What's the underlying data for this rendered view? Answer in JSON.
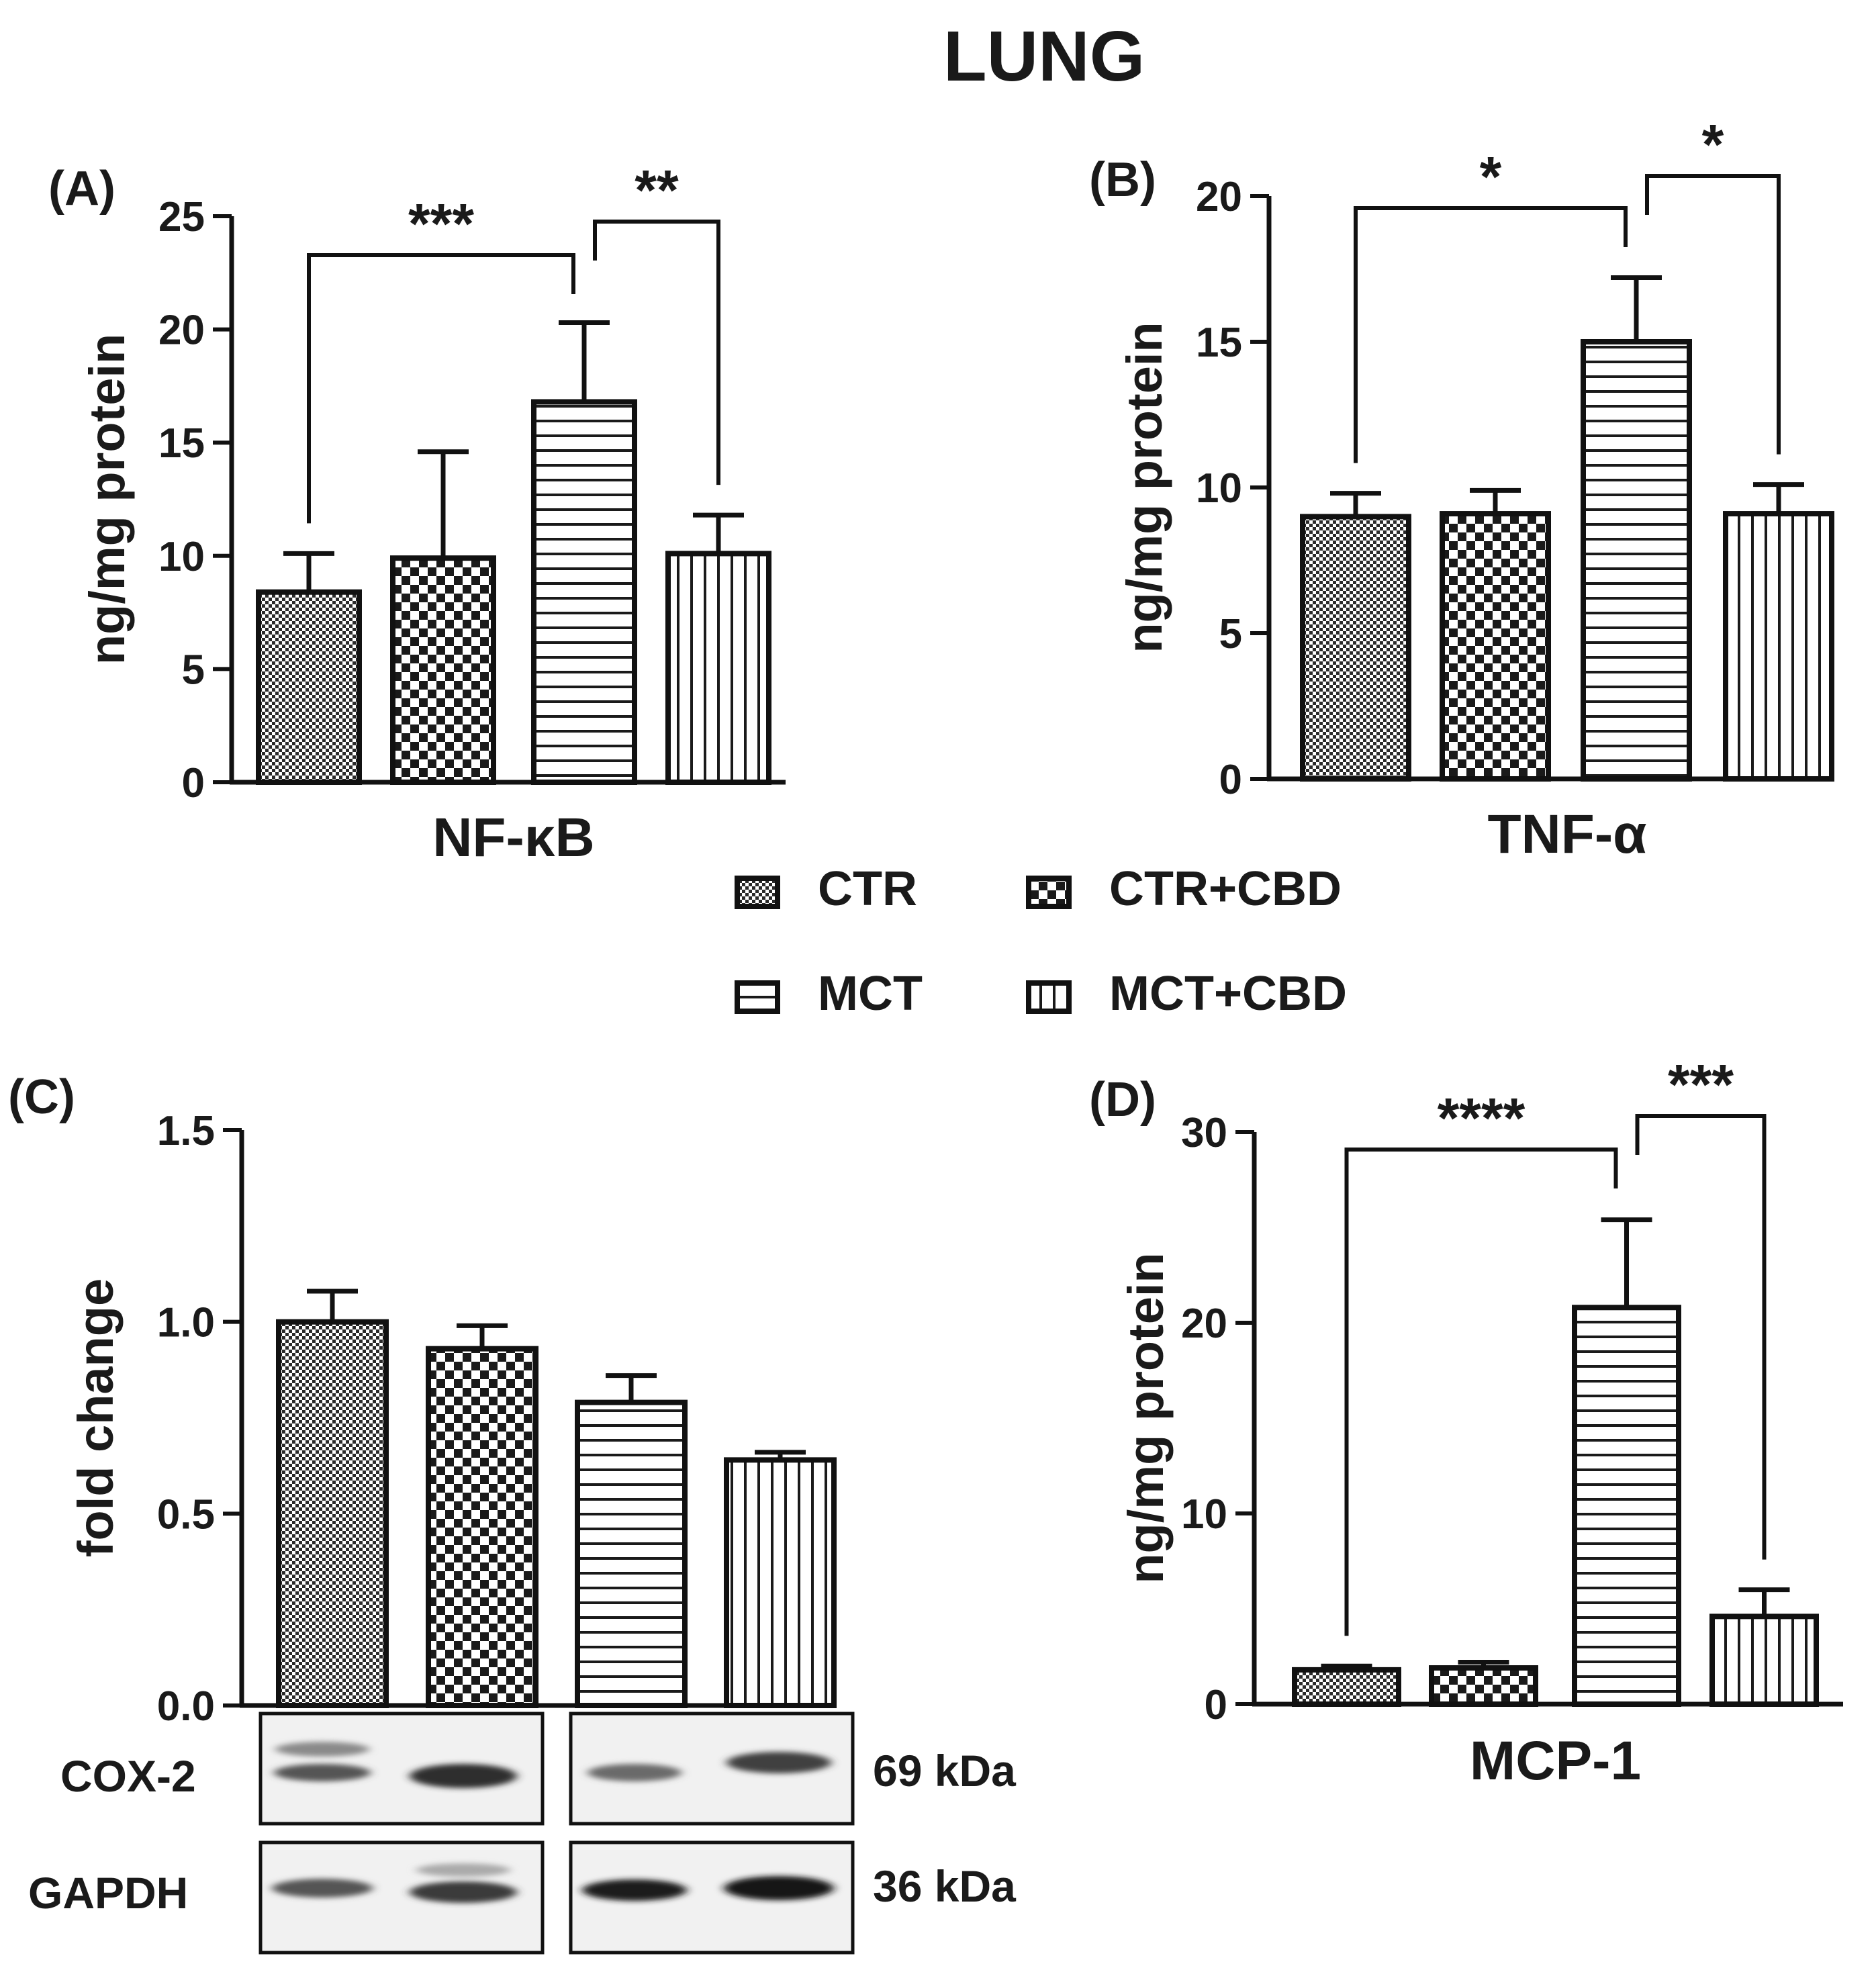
{
  "figure_title": "LUNG",
  "groups": [
    {
      "name": "CTR",
      "pattern": "pat-ctr"
    },
    {
      "name": "CTR+CBD",
      "pattern": "pat-ctrcbd"
    },
    {
      "name": "MCT",
      "pattern": "pat-mct"
    },
    {
      "name": "MCT+CBD",
      "pattern": "pat-mctcbd"
    }
  ],
  "chart_data": [
    {
      "panel": "(A)",
      "type": "bar",
      "title": "",
      "xlabel": "NF-κB",
      "ylabel": "ng/mg protein",
      "categories": [
        "CTR",
        "CTR+CBD",
        "MCT",
        "MCT+CBD"
      ],
      "values": [
        8.4,
        9.9,
        16.8,
        10.1
      ],
      "errors": [
        1.7,
        4.7,
        3.5,
        1.7
      ],
      "ylim": [
        0,
        25
      ],
      "ticks": [
        0,
        5,
        10,
        15,
        20,
        25
      ],
      "tick_labels": [
        "0",
        "5",
        "10",
        "15",
        "20",
        "25"
      ],
      "significance": [
        {
          "from": 0,
          "to": 2,
          "label": "***"
        },
        {
          "from": 2,
          "to": 3,
          "label": "**"
        }
      ]
    },
    {
      "panel": "(B)",
      "type": "bar",
      "title": "",
      "xlabel": "TNF-α",
      "ylabel": "ng/mg protein",
      "categories": [
        "CTR",
        "CTR+CBD",
        "MCT",
        "MCT+CBD"
      ],
      "values": [
        9.0,
        9.1,
        15.0,
        9.1
      ],
      "errors": [
        0.8,
        0.8,
        2.2,
        1.0
      ],
      "ylim": [
        0,
        20
      ],
      "ticks": [
        0,
        5,
        10,
        15,
        20
      ],
      "tick_labels": [
        "0",
        "5",
        "10",
        "15",
        "20"
      ],
      "significance": [
        {
          "from": 0,
          "to": 2,
          "label": "*"
        },
        {
          "from": 2,
          "to": 3,
          "label": "*"
        }
      ]
    },
    {
      "panel": "(C)",
      "type": "bar",
      "title": "",
      "xlabel": "",
      "ylabel": "fold change",
      "categories": [
        "CTR",
        "CTR+CBD",
        "MCT",
        "MCT+CBD"
      ],
      "values": [
        1.0,
        0.93,
        0.79,
        0.64
      ],
      "errors": [
        0.08,
        0.06,
        0.07,
        0.02
      ],
      "ylim": [
        0,
        1.5
      ],
      "ticks": [
        0,
        0.5,
        1.0,
        1.5
      ],
      "tick_labels": [
        "0.0",
        "0.5",
        "1.0",
        "1.5"
      ],
      "significance": []
    },
    {
      "panel": "(D)",
      "type": "bar",
      "title": "",
      "xlabel": "MCP-1",
      "ylabel": "ng/mg protein",
      "categories": [
        "CTR",
        "CTR+CBD",
        "MCT",
        "MCT+CBD"
      ],
      "values": [
        1.8,
        1.9,
        20.8,
        4.6
      ],
      "errors": [
        0.2,
        0.3,
        4.6,
        1.4
      ],
      "ylim": [
        0,
        30
      ],
      "ticks": [
        0,
        10,
        20,
        30
      ],
      "tick_labels": [
        "0",
        "10",
        "20",
        "30"
      ],
      "significance": [
        {
          "from": 0,
          "to": 2,
          "label": "****"
        },
        {
          "from": 2,
          "to": 3,
          "label": "***"
        }
      ]
    }
  ],
  "western_blot": {
    "rows": [
      {
        "protein": "COX-2",
        "size": "69 kDa"
      },
      {
        "protein": "GAPDH",
        "size": "36 kDa"
      }
    ]
  }
}
